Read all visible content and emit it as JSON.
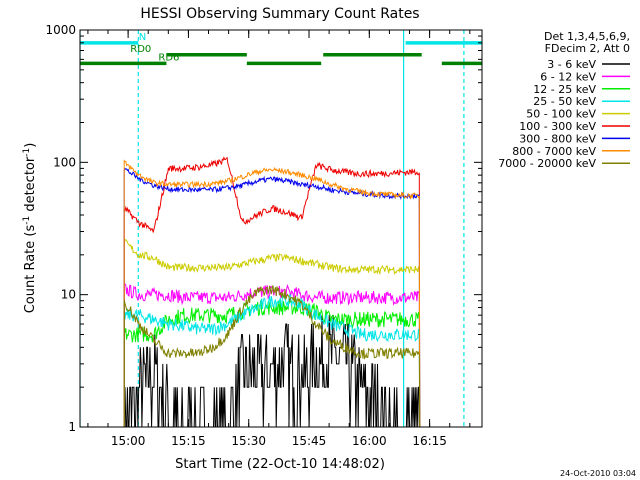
{
  "chart_data": {
    "type": "line",
    "title": "HESSI Observing Summary Count Rates",
    "xlabel": "Start Time (22-Oct-10 14:48:02)",
    "ylabel_parts": [
      "Count Rate (s",
      "-1",
      " detector",
      "-1",
      ")"
    ],
    "y_scale": "log",
    "ylim": [
      1,
      1000
    ],
    "xlim_minutes": [
      0,
      100
    ],
    "y_ticks": [
      "1",
      "10",
      "100",
      "1000"
    ],
    "x_ticks": [
      {
        "label": "15:00",
        "minute": 11.97
      },
      {
        "label": "15:15",
        "minute": 26.97
      },
      {
        "label": "15:30",
        "minute": 41.97
      },
      {
        "label": "15:45",
        "minute": 56.97
      },
      {
        "label": "16:00",
        "minute": 71.97
      },
      {
        "label": "16:15",
        "minute": 86.97
      }
    ],
    "legend": {
      "position": "right",
      "header": [
        "Det 1,3,4,5,6,9,",
        "FDecim 2, Att 0"
      ],
      "entries": [
        {
          "label": "3 - 6 keV",
          "color": "#000000"
        },
        {
          "label": "6 - 12 keV",
          "color": "#ff00ff"
        },
        {
          "label": "12 - 25 keV",
          "color": "#00ee00"
        },
        {
          "label": "25 - 50 keV",
          "color": "#00e5e5"
        },
        {
          "label": "50 - 100 keV",
          "color": "#cccc00"
        },
        {
          "label": "100 - 300 keV",
          "color": "#ee0000"
        },
        {
          "label": "300 - 800 keV",
          "color": "#0000ee"
        },
        {
          "label": "800 - 7000 keV",
          "color": "#ff8c00"
        },
        {
          "label": "7000 - 20000 keV",
          "color": "#808000"
        }
      ]
    },
    "flag_bars": [
      {
        "label": "N",
        "color": "#00e5e5",
        "level": 800,
        "segments": [
          [
            0,
            14.5
          ],
          [
            81,
            100
          ]
        ]
      },
      {
        "label": "RD0",
        "color": "#008000",
        "level": 650,
        "segments": [
          [
            21.5,
            41.5
          ],
          [
            60.5,
            85
          ]
        ]
      },
      {
        "label": "RD6",
        "color": "#008000",
        "level": 560,
        "segments": [
          [
            0,
            21.5
          ],
          [
            41.5,
            60
          ],
          [
            90,
            100
          ]
        ]
      }
    ],
    "vertical_lines": [
      {
        "minute": 0,
        "color": "#00e5e5",
        "style": "solid"
      },
      {
        "minute": 14.5,
        "color": "#00e5e5",
        "style": "dashed"
      },
      {
        "minute": 80.5,
        "color": "#00e5e5",
        "style": "solid"
      },
      {
        "minute": 95.5,
        "color": "#00e5e5",
        "style": "dashed"
      }
    ],
    "data_start_minute": 11,
    "data_end_minute": 84.5,
    "segment_boundaries_minutes": [
      11,
      21.5,
      41.5,
      60,
      84.5
    ],
    "series": [
      {
        "band": "3 - 6 keV",
        "color": "#000000",
        "values": [
          1,
          1.8,
          2.5,
          1.5,
          1,
          1,
          1,
          1,
          2.5,
          2.5,
          2.5,
          3,
          2.5,
          3,
          3.5,
          3,
          2,
          1.5,
          1,
          1,
          1
        ]
      },
      {
        "band": "6 - 12 keV",
        "color": "#ff00ff",
        "values": [
          11,
          10,
          10,
          10,
          9.5,
          9.5,
          9.5,
          9.5,
          10,
          10.5,
          10.5,
          10.5,
          10,
          9.5,
          9.5,
          9.5,
          9.5,
          9.5,
          9.5,
          9.5,
          9.5
        ]
      },
      {
        "band": "12 - 25 keV",
        "color": "#00ee00",
        "values": [
          5,
          5,
          5,
          6.5,
          7,
          7,
          7,
          7,
          7.5,
          8,
          8,
          8,
          8,
          7.5,
          6.5,
          6.5,
          6.5,
          6.5,
          6.5,
          6.5,
          6.5
        ]
      },
      {
        "band": "25 - 50 keV",
        "color": "#00e5e5",
        "values": [
          7,
          7,
          6.5,
          6,
          5.8,
          5.5,
          5.5,
          6,
          7,
          8,
          9,
          9,
          8.5,
          7,
          6,
          5.5,
          5,
          5,
          5,
          5,
          5
        ]
      },
      {
        "band": "50 - 100 keV",
        "color": "#cccc00",
        "values": [
          25,
          20,
          19,
          16,
          16,
          16,
          16,
          16,
          17,
          18,
          19,
          19,
          18,
          17,
          16,
          15.5,
          15.5,
          15.5,
          15.5,
          15.5,
          15.5
        ]
      },
      {
        "band": "100 - 300 keV",
        "color": "#ee0000",
        "values": [
          45,
          35,
          30,
          90,
          90,
          92,
          96,
          105,
          35,
          40,
          45,
          42,
          38,
          95,
          88,
          84,
          82,
          82,
          83,
          84,
          85
        ]
      },
      {
        "band": "300 - 800 keV",
        "color": "#0000ee",
        "values": [
          90,
          75,
          67,
          63,
          62,
          62,
          62,
          64,
          67,
          72,
          75,
          72,
          68,
          66,
          62,
          60,
          58,
          57,
          56,
          56,
          56
        ]
      },
      {
        "band": "800 - 7000 keV",
        "color": "#ff8c00",
        "values": [
          100,
          80,
          70,
          68,
          68,
          68,
          69,
          72,
          78,
          85,
          88,
          85,
          80,
          75,
          68,
          63,
          60,
          58,
          57,
          56,
          56
        ]
      },
      {
        "band": "7000 - 20000 keV",
        "color": "#808000",
        "values": [
          9,
          6,
          4.5,
          3.6,
          3.6,
          3.6,
          4,
          5,
          8,
          10.5,
          11,
          10,
          8.5,
          6,
          4.5,
          4,
          3.6,
          3.6,
          3.6,
          3.6,
          3.6
        ]
      }
    ],
    "footer_date": "24-Oct-2010 03:04"
  }
}
